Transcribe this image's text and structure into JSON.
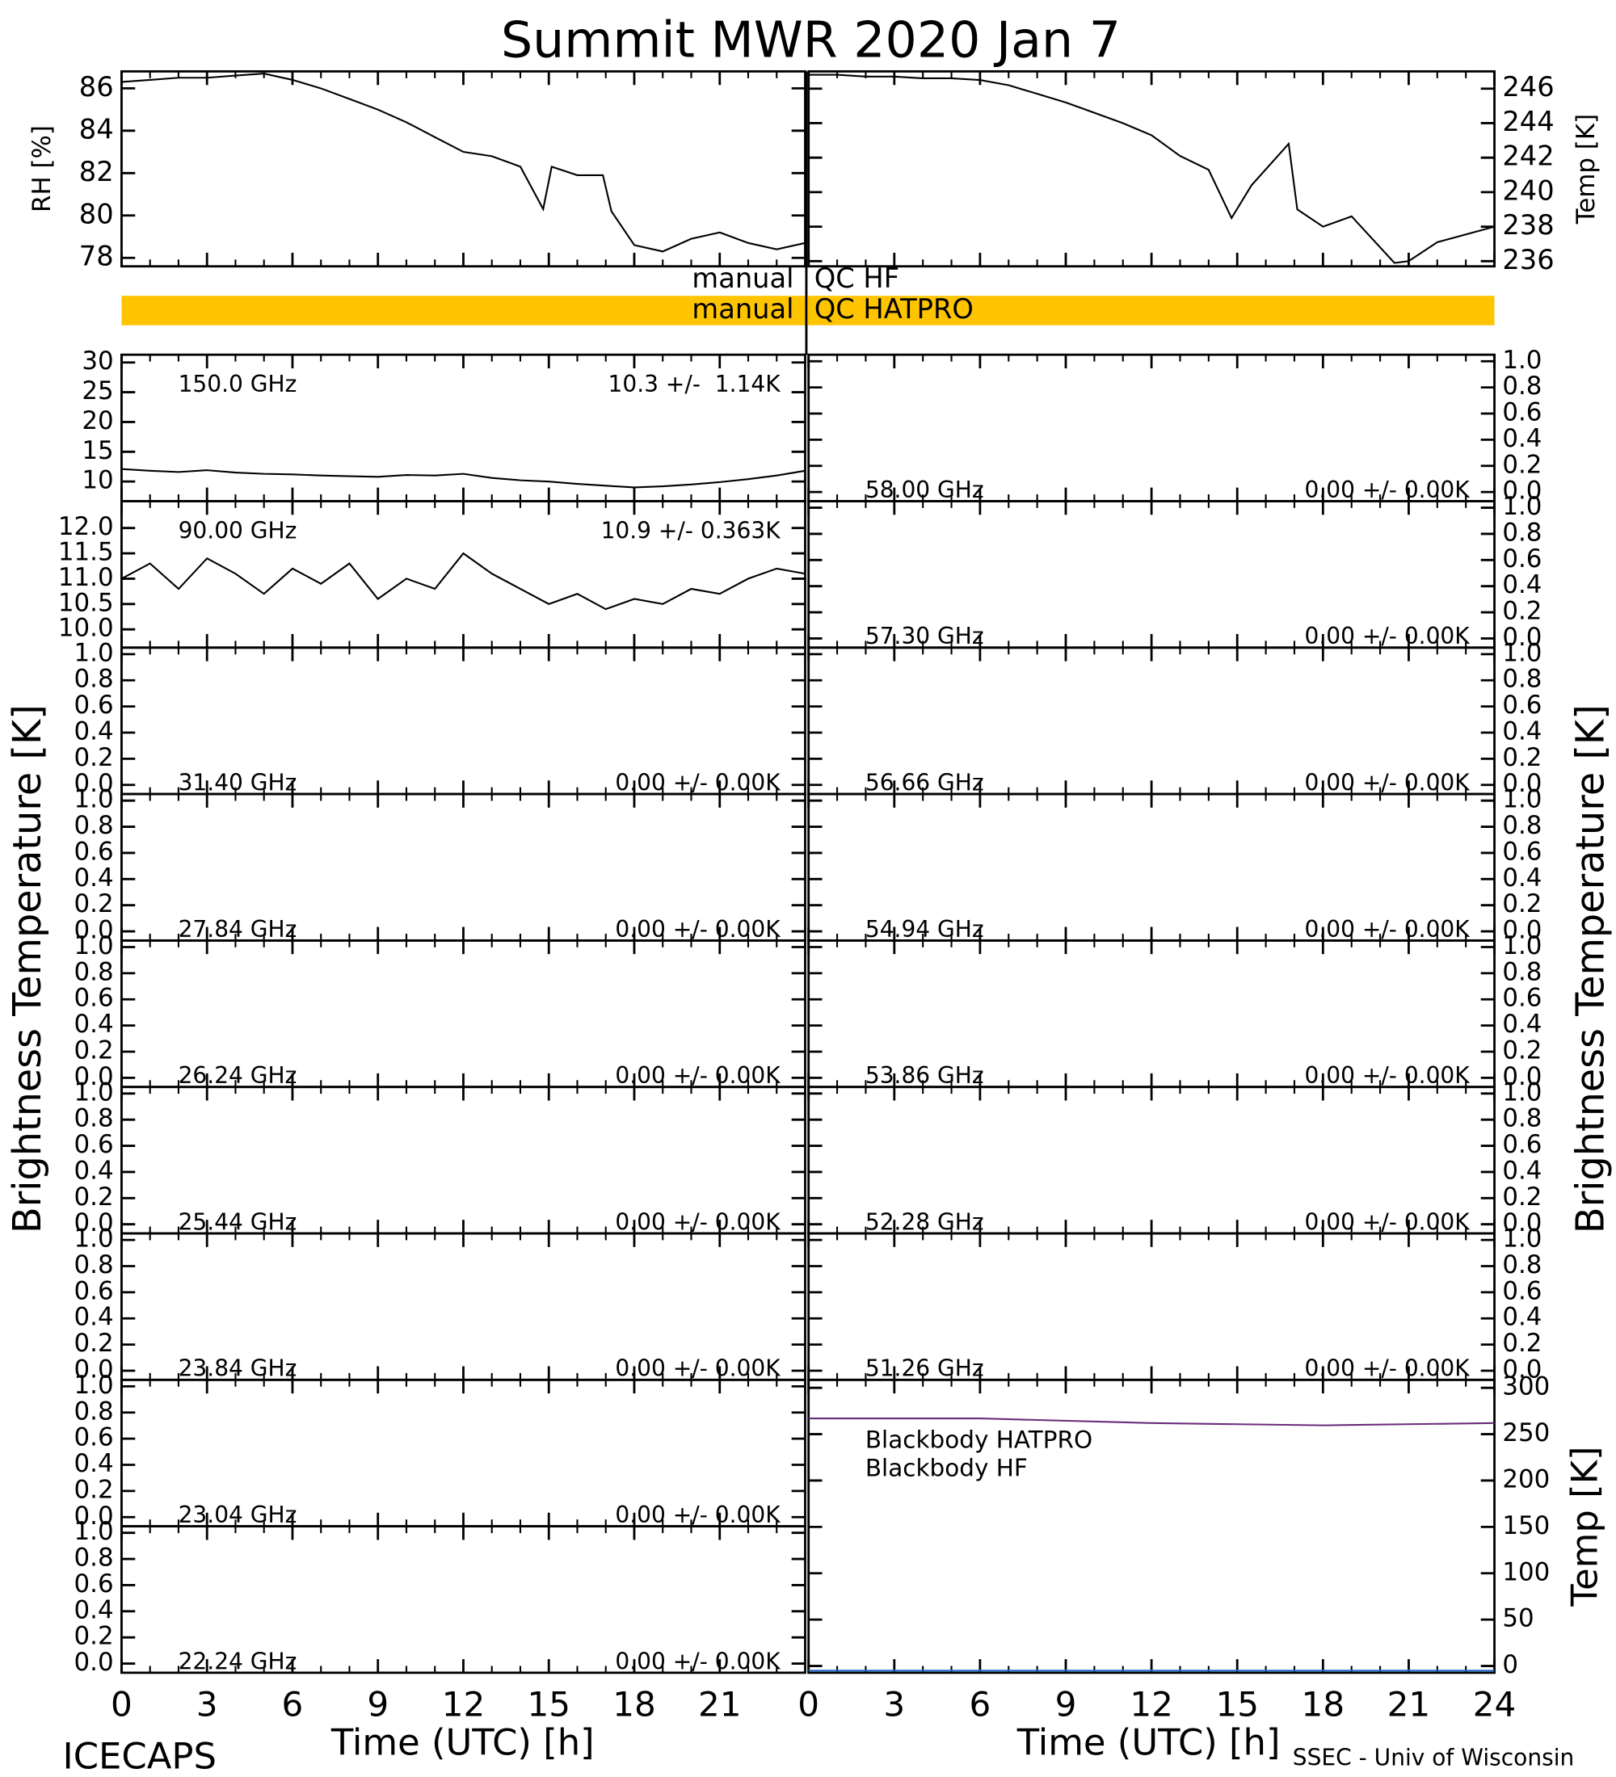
{
  "title": "Summit MWR 2020 Jan  7",
  "time_axis": {
    "xlim": [
      0,
      24
    ],
    "left_xticks": [
      0,
      3,
      6,
      9,
      12,
      15,
      18,
      21
    ],
    "right_xticks": [
      0,
      3,
      6,
      9,
      12,
      15,
      18,
      21,
      24
    ],
    "xlabel": "Time (UTC) [h]"
  },
  "ylabel_channels": "Brightness Temperature [K]",
  "qc": [
    {
      "left": "manual",
      "right": "QC HF",
      "color": null
    },
    {
      "left": "manual",
      "right": "QC HATPRO",
      "color": "#ffc400"
    }
  ],
  "footer_left": "ICECAPS",
  "footer_right": "SSEC - Univ of Wisconsin",
  "chart_data": [
    {
      "type": "line",
      "column": "left",
      "ylabel": "RH [%]",
      "x": [
        0,
        1,
        2,
        3,
        4,
        5,
        6,
        7,
        8,
        9,
        10,
        11,
        12,
        13,
        14,
        14.8,
        15.1,
        16,
        16.9,
        17.2,
        18,
        19,
        20,
        21,
        22,
        23,
        24
      ],
      "series": [
        {
          "color": "#000000",
          "values": [
            86.3,
            86.4,
            86.5,
            86.5,
            86.6,
            86.7,
            86.4,
            86.0,
            85.5,
            85.0,
            84.4,
            83.7,
            83.0,
            82.8,
            82.3,
            80.3,
            82.3,
            81.9,
            81.9,
            80.2,
            78.6,
            78.3,
            78.9,
            79.2,
            78.7,
            78.4,
            78.7
          ]
        }
      ],
      "ylim": [
        77.6,
        86.8
      ],
      "yticks": [
        78,
        80,
        82,
        84,
        86
      ]
    },
    {
      "type": "line",
      "column": "right",
      "ylabel": "Temp [K]",
      "x": [
        0,
        1,
        2,
        3,
        4,
        5,
        6,
        7,
        8,
        9,
        10,
        11,
        12,
        13,
        14,
        14.8,
        15.5,
        16.8,
        17.1,
        18,
        19,
        19.5,
        20.5,
        21,
        22,
        24
      ],
      "series": [
        {
          "color": "#000000",
          "values": [
            246.8,
            246.8,
            246.7,
            246.7,
            246.6,
            246.6,
            246.5,
            246.2,
            245.7,
            245.2,
            244.6,
            244.0,
            243.3,
            242.1,
            241.3,
            238.5,
            240.4,
            242.8,
            239.0,
            238.0,
            238.6,
            237.7,
            235.9,
            236.0,
            237.1,
            238.0
          ]
        }
      ],
      "ylim": [
        235.7,
        247.0
      ],
      "yticks": [
        236,
        238,
        240,
        242,
        244,
        246
      ]
    },
    {
      "type": "line",
      "column": "left",
      "label": "150.0 GHz",
      "stats": "10.3 +/-  1.14K",
      "x": [
        0,
        1,
        2,
        3,
        4,
        5,
        6,
        7,
        8,
        9,
        10,
        11,
        12,
        13,
        14,
        15,
        16,
        17,
        18,
        19,
        20,
        21,
        22,
        23,
        24
      ],
      "series": [
        {
          "color": "#000000",
          "values": [
            12.1,
            11.8,
            11.6,
            11.9,
            11.5,
            11.3,
            11.2,
            11.0,
            10.9,
            10.8,
            11.1,
            11.0,
            11.3,
            10.6,
            10.2,
            10.0,
            9.6,
            9.3,
            9.0,
            9.2,
            9.5,
            9.9,
            10.4,
            11.0,
            11.8
          ]
        }
      ],
      "ylim": [
        6.7,
        31.3
      ],
      "yticks": [
        10,
        15,
        20,
        25,
        30
      ]
    },
    {
      "type": "line",
      "column": "left",
      "label": "90.00 GHz",
      "stats": "10.9 +/- 0.363K",
      "x": [
        0,
        1,
        2,
        3,
        4,
        5,
        6,
        7,
        8,
        9,
        10,
        11,
        12,
        13,
        14,
        15,
        16,
        17,
        18,
        19,
        20,
        21,
        22,
        23,
        24
      ],
      "series": [
        {
          "color": "#000000",
          "values": [
            11.0,
            11.3,
            10.8,
            11.4,
            11.1,
            10.7,
            11.2,
            10.9,
            11.3,
            10.6,
            11.0,
            10.8,
            11.5,
            11.1,
            10.8,
            10.5,
            10.7,
            10.4,
            10.6,
            10.5,
            10.8,
            10.7,
            11.0,
            11.2,
            11.1
          ]
        }
      ],
      "ylim": [
        9.64,
        12.53
      ],
      "yticks": [
        {
          "value": 10,
          "label": "10.0"
        },
        10.5,
        {
          "value": 11,
          "label": "11.0"
        },
        11.5,
        {
          "value": 12,
          "label": "12.0"
        }
      ]
    },
    {
      "type": "line",
      "column": "left",
      "label": "31.40 GHz",
      "stats": "0.00 +/- 0.00K",
      "ylim": [
        -0.07,
        1.05
      ],
      "yticks": [
        {
          "value": 0,
          "label": "0.0"
        },
        0.2,
        0.4,
        0.6,
        0.8,
        {
          "value": 1,
          "label": "1.0"
        }
      ]
    },
    {
      "type": "line",
      "column": "left",
      "label": "27.84 GHz",
      "stats": "0.00 +/- 0.00K",
      "ylim": [
        -0.07,
        1.05
      ],
      "yticks": [
        {
          "value": 0,
          "label": "0.0"
        },
        0.2,
        0.4,
        0.6,
        0.8,
        {
          "value": 1,
          "label": "1.0"
        }
      ]
    },
    {
      "type": "line",
      "column": "left",
      "label": "26.24 GHz",
      "stats": "0.00 +/- 0.00K",
      "ylim": [
        -0.07,
        1.05
      ],
      "yticks": [
        {
          "value": 0,
          "label": "0.0"
        },
        0.2,
        0.4,
        0.6,
        0.8,
        {
          "value": 1,
          "label": "1.0"
        }
      ]
    },
    {
      "type": "line",
      "column": "left",
      "label": "25.44 GHz",
      "stats": "0.00 +/- 0.00K",
      "ylim": [
        -0.07,
        1.05
      ],
      "yticks": [
        {
          "value": 0,
          "label": "0.0"
        },
        0.2,
        0.4,
        0.6,
        0.8,
        {
          "value": 1,
          "label": "1.0"
        }
      ]
    },
    {
      "type": "line",
      "column": "left",
      "label": "23.84 GHz",
      "stats": "0.00 +/- 0.00K",
      "ylim": [
        -0.07,
        1.05
      ],
      "yticks": [
        {
          "value": 0,
          "label": "0.0"
        },
        0.2,
        0.4,
        0.6,
        0.8,
        {
          "value": 1,
          "label": "1.0"
        }
      ]
    },
    {
      "type": "line",
      "column": "left",
      "label": "23.04 GHz",
      "stats": "0.00 +/- 0.00K",
      "ylim": [
        -0.07,
        1.05
      ],
      "yticks": [
        {
          "value": 0,
          "label": "0.0"
        },
        0.2,
        0.4,
        0.6,
        0.8,
        {
          "value": 1,
          "label": "1.0"
        }
      ]
    },
    {
      "type": "line",
      "column": "left",
      "label": "22.24 GHz",
      "stats": "0.00 +/- 0.00K",
      "ylim": [
        -0.07,
        1.05
      ],
      "yticks": [
        {
          "value": 0,
          "label": "0.0"
        },
        0.2,
        0.4,
        0.6,
        0.8,
        {
          "value": 1,
          "label": "1.0"
        }
      ]
    },
    {
      "type": "line",
      "column": "right",
      "label": "58.00 GHz",
      "stats": "0.00 +/- 0.00K",
      "ylim": [
        -0.07,
        1.05
      ],
      "yticks": [
        {
          "value": 0,
          "label": "0.0"
        },
        0.2,
        0.4,
        0.6,
        0.8,
        {
          "value": 1,
          "label": "1.0"
        }
      ]
    },
    {
      "type": "line",
      "column": "right",
      "label": "57.30 GHz",
      "stats": "0.00 +/- 0.00K",
      "ylim": [
        -0.07,
        1.05
      ],
      "yticks": [
        {
          "value": 0,
          "label": "0.0"
        },
        0.2,
        0.4,
        0.6,
        0.8,
        {
          "value": 1,
          "label": "1.0"
        }
      ]
    },
    {
      "type": "line",
      "column": "right",
      "label": "56.66 GHz",
      "stats": "0.00 +/- 0.00K",
      "ylim": [
        -0.07,
        1.05
      ],
      "yticks": [
        {
          "value": 0,
          "label": "0.0"
        },
        0.2,
        0.4,
        0.6,
        0.8,
        {
          "value": 1,
          "label": "1.0"
        }
      ]
    },
    {
      "type": "line",
      "column": "right",
      "label": "54.94 GHz",
      "stats": "0.00 +/- 0.00K",
      "ylim": [
        -0.07,
        1.05
      ],
      "yticks": [
        {
          "value": 0,
          "label": "0.0"
        },
        0.2,
        0.4,
        0.6,
        0.8,
        {
          "value": 1,
          "label": "1.0"
        }
      ]
    },
    {
      "type": "line",
      "column": "right",
      "label": "53.86 GHz",
      "stats": "0.00 +/- 0.00K",
      "ylim": [
        -0.07,
        1.05
      ],
      "yticks": [
        {
          "value": 0,
          "label": "0.0"
        },
        0.2,
        0.4,
        0.6,
        0.8,
        {
          "value": 1,
          "label": "1.0"
        }
      ]
    },
    {
      "type": "line",
      "column": "right",
      "label": "52.28 GHz",
      "stats": "0.00 +/- 0.00K",
      "ylim": [
        -0.07,
        1.05
      ],
      "yticks": [
        {
          "value": 0,
          "label": "0.0"
        },
        0.2,
        0.4,
        0.6,
        0.8,
        {
          "value": 1,
          "label": "1.0"
        }
      ]
    },
    {
      "type": "line",
      "column": "right",
      "label": "51.26 GHz",
      "stats": "0.00 +/- 0.00K",
      "ylim": [
        -0.07,
        1.05
      ],
      "yticks": [
        {
          "value": 0,
          "label": "0.0"
        },
        0.2,
        0.4,
        0.6,
        0.8,
        {
          "value": 1,
          "label": "1.0"
        }
      ]
    },
    {
      "type": "line",
      "column": "right",
      "ylabel": "Temp [K]",
      "x": [
        0,
        6,
        12,
        18,
        24
      ],
      "series": [
        {
          "name": "Blackbody HATPRO",
          "color": "#1e6fd9",
          "values": [
            -5,
            -5,
            -5,
            -5,
            -5
          ]
        },
        {
          "name": "Blackbody HF",
          "color": "#6a2c7a",
          "values": [
            267,
            267,
            262,
            259.5,
            262
          ]
        }
      ],
      "ylim": [
        -7.3,
        308.6
      ],
      "yticks": [
        0,
        50,
        100,
        150,
        200,
        250,
        300
      ]
    }
  ]
}
